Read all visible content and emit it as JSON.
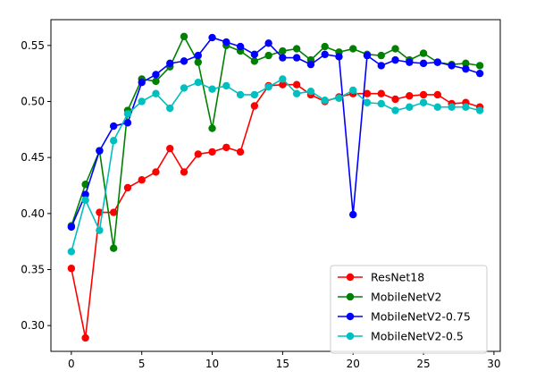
{
  "chart_data": {
    "type": "line",
    "title": "",
    "xlabel": "",
    "ylabel": "",
    "xlim": [
      -1.45,
      30.45
    ],
    "ylim": [
      0.277,
      0.573
    ],
    "xticks": [
      0,
      5,
      10,
      15,
      20,
      25,
      30
    ],
    "yticks": [
      0.3,
      0.35,
      0.4,
      0.45,
      0.5,
      0.55
    ],
    "grid": false,
    "legend_position": "lower-right",
    "x": [
      0,
      1,
      2,
      3,
      4,
      5,
      6,
      7,
      8,
      9,
      10,
      11,
      12,
      13,
      14,
      15,
      16,
      17,
      18,
      19,
      20,
      21,
      22,
      23,
      24,
      25,
      26,
      27,
      28,
      29
    ],
    "series": [
      {
        "name": "ResNet18",
        "color": "#ff0000",
        "values": [
          0.351,
          0.289,
          0.401,
          0.401,
          0.423,
          0.43,
          0.437,
          0.458,
          0.437,
          0.453,
          0.455,
          0.459,
          0.455,
          0.496,
          0.514,
          0.515,
          0.515,
          0.506,
          0.5,
          0.504,
          0.507,
          0.507,
          0.507,
          0.502,
          0.505,
          0.506,
          0.506,
          0.498,
          0.499,
          0.495
        ]
      },
      {
        "name": "MobileNetV2",
        "color": "#008000",
        "values": [
          0.389,
          0.426,
          0.456,
          0.369,
          0.492,
          0.52,
          0.518,
          0.531,
          0.558,
          0.535,
          0.476,
          0.55,
          0.545,
          0.536,
          0.541,
          0.545,
          0.547,
          0.537,
          0.549,
          0.544,
          0.547,
          0.542,
          0.541,
          0.547,
          0.537,
          0.543,
          0.535,
          0.533,
          0.534,
          0.532
        ]
      },
      {
        "name": "MobileNetV2-0.75",
        "color": "#0000ff",
        "values": [
          0.388,
          0.417,
          0.456,
          0.478,
          0.481,
          0.517,
          0.524,
          0.534,
          0.536,
          0.541,
          0.557,
          0.553,
          0.549,
          0.542,
          0.552,
          0.539,
          0.539,
          0.533,
          0.542,
          0.54,
          0.399,
          0.541,
          0.532,
          0.537,
          0.535,
          0.534,
          0.535,
          0.532,
          0.529,
          0.525
        ]
      },
      {
        "name": "MobileNetV2-0.5",
        "color": "#00bfbf",
        "values": [
          0.366,
          0.412,
          0.385,
          0.465,
          0.489,
          0.5,
          0.507,
          0.494,
          0.512,
          0.517,
          0.511,
          0.514,
          0.506,
          0.506,
          0.513,
          0.52,
          0.507,
          0.509,
          0.501,
          0.503,
          0.51,
          0.499,
          0.498,
          0.492,
          0.495,
          0.499,
          0.495,
          0.495,
          0.495,
          0.492
        ]
      }
    ]
  }
}
